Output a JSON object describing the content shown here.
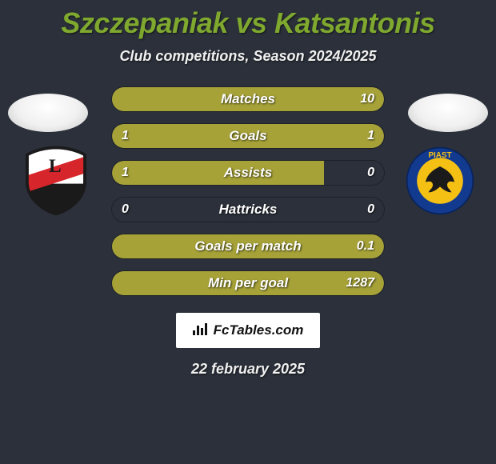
{
  "title": "Szczepaniak vs Katsantonis",
  "subtitle": "Club competitions, Season 2024/2025",
  "date": "22 february 2025",
  "branding": {
    "label": "FcTables.com"
  },
  "colors": {
    "background": "#2b303a",
    "accent_left": "#a6a238",
    "accent_right": "#a6a238",
    "title_color": "#7fa82f",
    "text_color": "#ffffff",
    "badge_bg": "#ffffff"
  },
  "rows": [
    {
      "label": "Matches",
      "left": "",
      "right": "10",
      "left_pct": 0,
      "right_pct": 100
    },
    {
      "label": "Goals",
      "left": "1",
      "right": "1",
      "left_pct": 50,
      "right_pct": 50
    },
    {
      "label": "Assists",
      "left": "1",
      "right": "0",
      "left_pct": 78,
      "right_pct": 0
    },
    {
      "label": "Hattricks",
      "left": "0",
      "right": "0",
      "left_pct": 0,
      "right_pct": 0
    },
    {
      "label": "Goals per match",
      "left": "",
      "right": "0.1",
      "left_pct": 0,
      "right_pct": 100
    },
    {
      "label": "Min per goal",
      "left": "",
      "right": "1287",
      "left_pct": 0,
      "right_pct": 100
    }
  ],
  "club_left": {
    "name": "Legia Warsaw",
    "shield_stroke": "#2a2a2a",
    "upper_fill": "#ffffff",
    "lower_fill": "#1a1a1a",
    "band_fill": "#d6252b",
    "letter": "L",
    "letter_color": "#1a1a1a"
  },
  "club_right": {
    "name": "Piast Gliwice",
    "ring_fill": "#123a8f",
    "ring_text_top": "PIAST",
    "ring_text_color": "#f5c014",
    "inner_fill": "#f5c014",
    "eagle_color": "#1a1a1a"
  }
}
